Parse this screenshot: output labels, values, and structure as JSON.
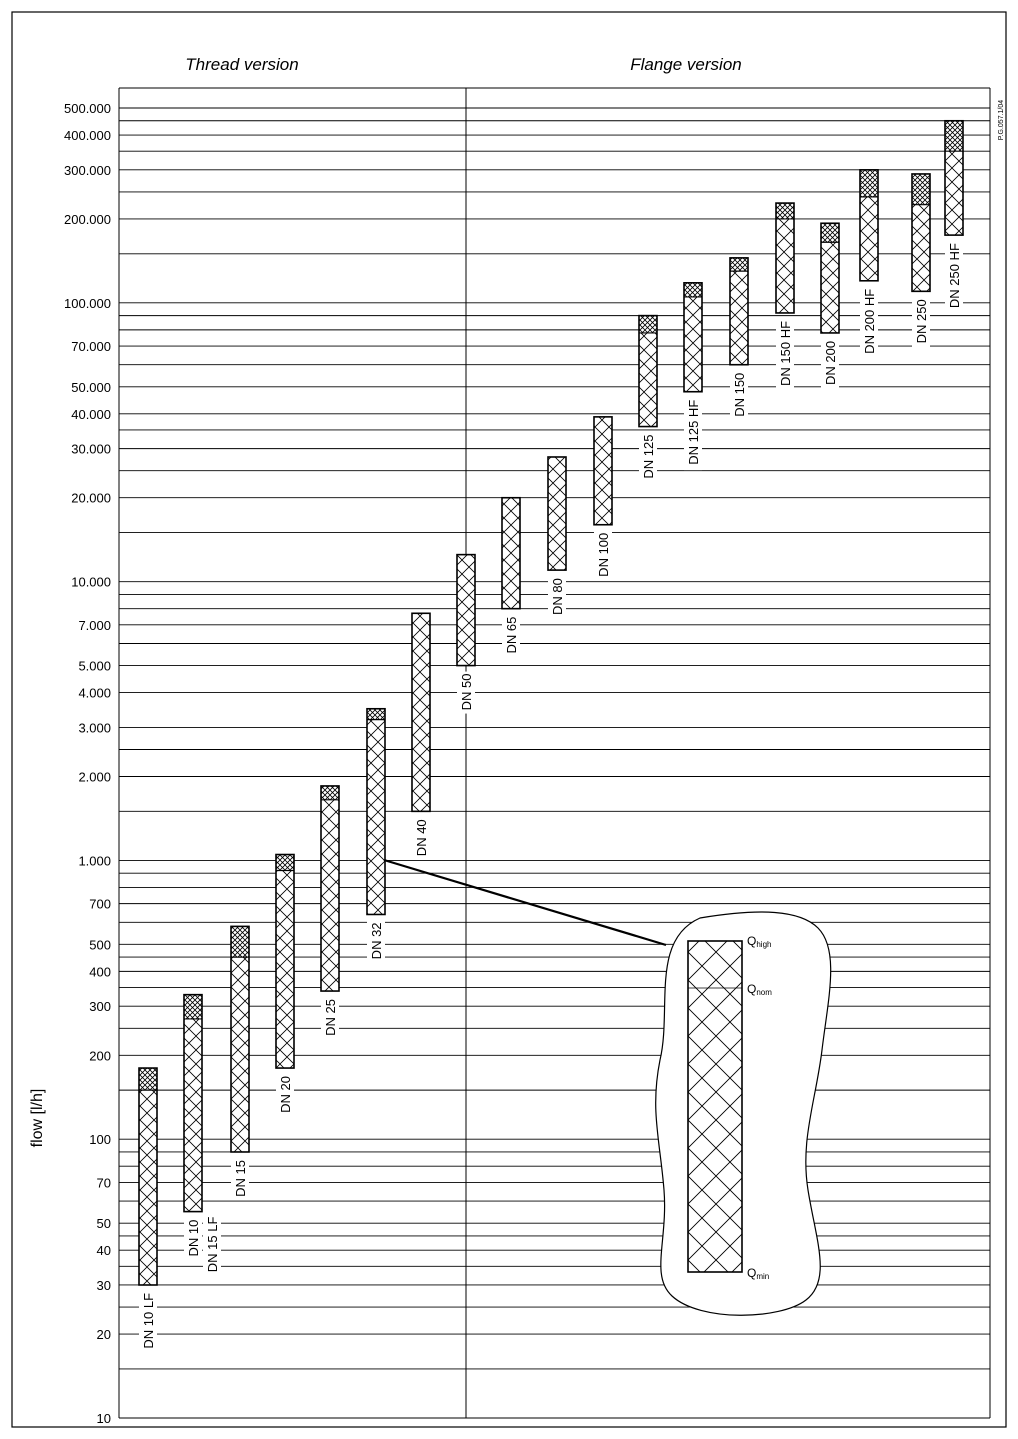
{
  "chart_data": {
    "type": "bar",
    "subtype": "floating-range",
    "ylabel": "flow [l/h]",
    "yscale": "log",
    "ylim": [
      10,
      600000
    ],
    "grid": true,
    "sections": [
      {
        "name": "Thread version"
      },
      {
        "name": "Flange version"
      }
    ],
    "doc_code": "P.G.057.1/04",
    "y_tick_labels": [
      {
        "value": 10,
        "label": "10"
      },
      {
        "value": 20,
        "label": "20"
      },
      {
        "value": 30,
        "label": "30"
      },
      {
        "value": 40,
        "label": "40"
      },
      {
        "value": 50,
        "label": "50"
      },
      {
        "value": 70,
        "label": "70"
      },
      {
        "value": 100,
        "label": "100"
      },
      {
        "value": 200,
        "label": "200"
      },
      {
        "value": 300,
        "label": "300"
      },
      {
        "value": 400,
        "label": "400"
      },
      {
        "value": 500,
        "label": "500"
      },
      {
        "value": 700,
        "label": "700"
      },
      {
        "value": 1000,
        "label": "1.000"
      },
      {
        "value": 2000,
        "label": "2.000"
      },
      {
        "value": 3000,
        "label": "3.000"
      },
      {
        "value": 4000,
        "label": "4.000"
      },
      {
        "value": 5000,
        "label": "5.000"
      },
      {
        "value": 7000,
        "label": "7.000"
      },
      {
        "value": 10000,
        "label": "10.000"
      },
      {
        "value": 20000,
        "label": "20.000"
      },
      {
        "value": 30000,
        "label": "30.000"
      },
      {
        "value": 40000,
        "label": "40.000"
      },
      {
        "value": 50000,
        "label": "50.000"
      },
      {
        "value": 70000,
        "label": "70.000"
      },
      {
        "value": 100000,
        "label": "100.000"
      },
      {
        "value": 200000,
        "label": "200.000"
      },
      {
        "value": 300000,
        "label": "300.000"
      },
      {
        "value": 400000,
        "label": "400.000"
      },
      {
        "value": 500000,
        "label": "500.000"
      }
    ],
    "extra_gridlines": [
      15,
      25,
      35,
      45,
      60,
      80,
      90,
      150,
      250,
      350,
      450,
      600,
      800,
      900,
      1500,
      2500,
      6000,
      8000,
      9000,
      15000,
      25000,
      35000,
      60000,
      80000,
      90000,
      150000,
      250000,
      350000,
      450000
    ],
    "series": [
      {
        "name": "Qmin"
      },
      {
        "name": "Qnom"
      },
      {
        "name": "Qhigh"
      }
    ],
    "categories": [
      "DN 10 LF",
      "DN 10",
      "DN 15 LF",
      "DN 15",
      "DN 20",
      "DN 25",
      "DN 32",
      "DN 40",
      "DN 50",
      "DN 65",
      "DN 80",
      "DN 100",
      "DN 125",
      "DN 125 HF",
      "DN 150",
      "DN 150 HF",
      "DN 200",
      "DN 200 HF",
      "DN 250",
      "DN 250 HF"
    ],
    "bars": [
      {
        "category": "DN 10 LF",
        "section": "Thread version",
        "qmin": 30,
        "qnom": 150,
        "qhigh": 180
      },
      {
        "category": "DN 10",
        "section": "Thread version",
        "qmin": 55,
        "qnom": 270,
        "qhigh": 330
      },
      {
        "category": "DN 15",
        "section": "Thread version",
        "qmin": 90,
        "qnom": 450,
        "qhigh": 580
      },
      {
        "category": "DN 20",
        "section": "Thread version",
        "qmin": 180,
        "qnom": 920,
        "qhigh": 1050
      },
      {
        "category": "DN 25",
        "section": "Thread version",
        "qmin": 340,
        "qnom": 1650,
        "qhigh": 1850
      },
      {
        "category": "DN 32",
        "section": "Thread version",
        "qmin": 640,
        "qnom": 3200,
        "qhigh": 3500
      },
      {
        "category": "DN 40",
        "section": "Thread version",
        "qmin": 1500,
        "qhigh": 7700
      },
      {
        "category": "DN 50",
        "section": "Flange version",
        "qmin": 5000,
        "qhigh": 12500
      },
      {
        "category": "DN 65",
        "section": "Flange version",
        "qmin": 8000,
        "qhigh": 20000
      },
      {
        "category": "DN 80",
        "section": "Flange version",
        "qmin": 11000,
        "qhigh": 28000
      },
      {
        "category": "DN 100",
        "section": "Flange version",
        "qmin": 16000,
        "qhigh": 39000
      },
      {
        "category": "DN 125",
        "section": "Flange version",
        "qmin": 36000,
        "qnom": 78000,
        "qhigh": 90000
      },
      {
        "category": "DN 125 HF",
        "section": "Flange version",
        "qmin": 48000,
        "qnom": 105000,
        "qhigh": 118000
      },
      {
        "category": "DN 150",
        "section": "Flange version",
        "qmin": 60000,
        "qnom": 130000,
        "qhigh": 145000
      },
      {
        "category": "DN 150 HF",
        "section": "Flange version",
        "qmin": 92000,
        "qnom": 200000,
        "qhigh": 228000
      },
      {
        "category": "DN 200",
        "section": "Flange version",
        "qmin": 78000,
        "qnom": 165000,
        "qhigh": 193000
      },
      {
        "category": "DN 200 HF",
        "section": "Flange version",
        "qmin": 120000,
        "qnom": 240000,
        "qhigh": 300000
      },
      {
        "category": "DN 250",
        "section": "Flange version",
        "qmin": 110000,
        "qnom": 225000,
        "qhigh": 290000
      },
      {
        "category": "DN 250 HF",
        "section": "Flange version",
        "qmin": 175000,
        "qnom": 350000,
        "qhigh": 450000
      }
    ],
    "legend_inset": {
      "labels": [
        {
          "main": "Q",
          "sub": "high"
        },
        {
          "main": "Q",
          "sub": "nom"
        },
        {
          "main": "Q",
          "sub": "min"
        }
      ]
    }
  }
}
